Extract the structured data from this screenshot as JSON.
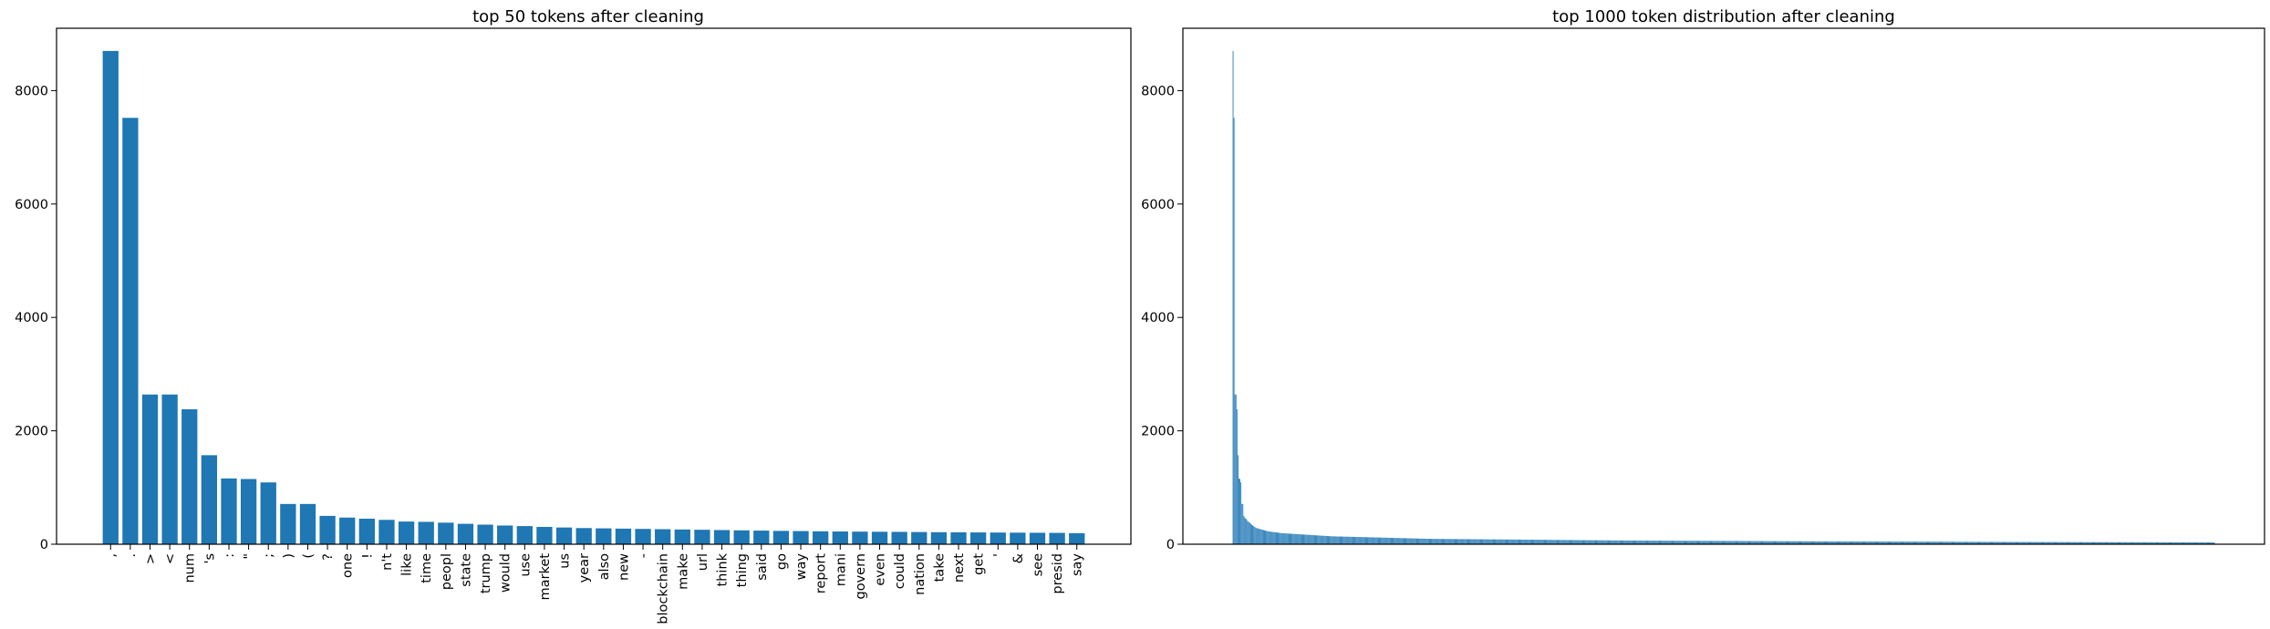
{
  "colors": {
    "bar": "#1f77b4",
    "axis": "#000000",
    "background": "#ffffff"
  },
  "chart_data": [
    {
      "type": "bar",
      "title": "top 50 tokens after cleaning",
      "xlabel": "",
      "ylabel": "",
      "ylim": [
        0,
        9100
      ],
      "yticks": [
        0,
        2000,
        4000,
        6000,
        8000
      ],
      "grid": false,
      "categories": [
        ",",
        ".",
        ">",
        "<",
        "num",
        "'s",
        ":",
        "\"",
        ";",
        ")",
        "(",
        "?",
        "one",
        "!",
        "n't",
        "like",
        "time",
        "peopl",
        "state",
        "trump",
        "would",
        "use",
        "market",
        "us",
        "year",
        "also",
        "new",
        "-",
        "blockchain",
        "make",
        "url",
        "think",
        "thing",
        "said",
        "go",
        "way",
        "report",
        "mani",
        "govern",
        "even",
        "could",
        "nation",
        "take",
        "next",
        "get",
        "'",
        "&",
        "see",
        "presid",
        "say"
      ],
      "values": [
        8700,
        7520,
        2640,
        2640,
        2380,
        1570,
        1160,
        1150,
        1090,
        710,
        710,
        500,
        470,
        450,
        430,
        400,
        395,
        380,
        360,
        345,
        330,
        320,
        305,
        295,
        285,
        280,
        275,
        270,
        265,
        260,
        255,
        250,
        245,
        240,
        235,
        232,
        228,
        225,
        222,
        220,
        218,
        215,
        212,
        210,
        208,
        206,
        204,
        202,
        200,
        195
      ]
    },
    {
      "type": "bar",
      "title": "top 1000 token distribution after cleaning",
      "xlabel": "",
      "ylabel": "",
      "ylim": [
        0,
        9100
      ],
      "yticks": [
        0,
        2000,
        4000,
        6000,
        8000
      ],
      "grid": false,
      "bar_count": 1000,
      "head_values": [
        8700,
        7520,
        2640,
        2640,
        2380,
        1570,
        1160,
        1150,
        1090,
        710,
        710,
        500,
        470,
        450,
        430,
        400,
        395,
        380,
        360,
        345,
        330,
        320,
        305,
        295,
        285,
        280,
        275,
        270,
        265,
        260,
        255,
        250,
        245,
        240,
        235,
        232,
        228,
        225,
        222,
        220,
        218,
        215,
        212,
        210,
        208,
        206,
        204,
        202,
        200,
        195
      ],
      "tail_curve": {
        "rank": [
          50,
          100,
          200,
          400,
          600,
          800,
          1000
        ],
        "value": [
          195,
          140,
          95,
          65,
          50,
          40,
          32
        ]
      }
    }
  ]
}
